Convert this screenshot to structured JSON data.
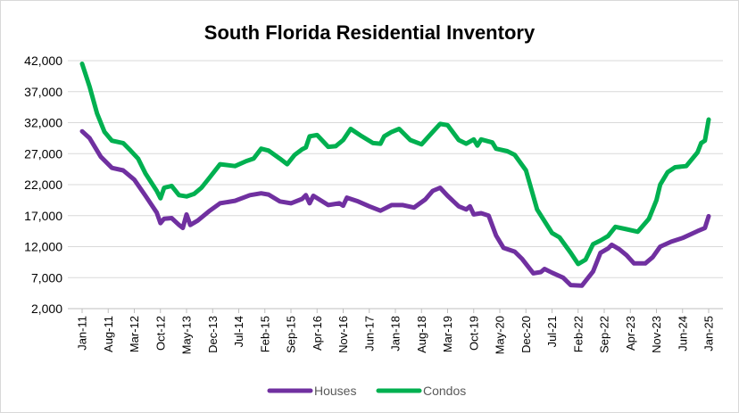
{
  "chart_data": {
    "type": "line",
    "title": "South Florida Residential Inventory",
    "xlabel": "",
    "ylabel": "",
    "ylim": [
      2000,
      42000
    ],
    "y_ticks": [
      "2,000",
      "7,000",
      "12,000",
      "17,000",
      "22,000",
      "27,000",
      "32,000",
      "37,000",
      "42,000"
    ],
    "x_tick_labels": [
      "Jan-11",
      "Aug-11",
      "Mar-12",
      "Oct-12",
      "May-13",
      "Dec-13",
      "Jul-14",
      "Feb-15",
      "Sep-15",
      "Apr-16",
      "Nov-16",
      "Jun-17",
      "Jan-18",
      "Aug-18",
      "Mar-19",
      "Oct-19",
      "May-20",
      "Dec-20",
      "Jul-21",
      "Feb-22",
      "Sep-22",
      "Apr-23",
      "Nov-23",
      "Jun-24",
      "Jan-25"
    ],
    "x_range": [
      "Jan-11",
      "Jan-25"
    ],
    "grid": "horizontal",
    "legend": "bottom",
    "series": [
      {
        "name": "Houses",
        "color": "#7030a0",
        "points": [
          [
            "Jan-11",
            30600
          ],
          [
            "Mar-11",
            29500
          ],
          [
            "Jun-11",
            26500
          ],
          [
            "Sep-11",
            24700
          ],
          [
            "Dec-11",
            24300
          ],
          [
            "Mar-12",
            22800
          ],
          [
            "Jun-12",
            20200
          ],
          [
            "Sep-12",
            17500
          ],
          [
            "Oct-12",
            15800
          ],
          [
            "Nov-12",
            16500
          ],
          [
            "Jan-13",
            16600
          ],
          [
            "Mar-13",
            15500
          ],
          [
            "Apr-13",
            15000
          ],
          [
            "May-13",
            17200
          ],
          [
            "Jun-13",
            15500
          ],
          [
            "Aug-13",
            16200
          ],
          [
            "Nov-13",
            17700
          ],
          [
            "Feb-14",
            19000
          ],
          [
            "Jun-14",
            19400
          ],
          [
            "Oct-14",
            20300
          ],
          [
            "Jan-15",
            20600
          ],
          [
            "Mar-15",
            20400
          ],
          [
            "Jun-15",
            19300
          ],
          [
            "Sep-15",
            19000
          ],
          [
            "Dec-15",
            19700
          ],
          [
            "Jan-16",
            20300
          ],
          [
            "Feb-16",
            19000
          ],
          [
            "Mar-16",
            20200
          ],
          [
            "Jul-16",
            18700
          ],
          [
            "Oct-16",
            19000
          ],
          [
            "Nov-16",
            18600
          ],
          [
            "Dec-16",
            19900
          ],
          [
            "Mar-17",
            19300
          ],
          [
            "Jun-17",
            18500
          ],
          [
            "Sep-17",
            17800
          ],
          [
            "Dec-17",
            18700
          ],
          [
            "Mar-18",
            18700
          ],
          [
            "Jun-18",
            18300
          ],
          [
            "Sep-18",
            19600
          ],
          [
            "Nov-18",
            21000
          ],
          [
            "Jan-19",
            21500
          ],
          [
            "Mar-19",
            20200
          ],
          [
            "Jun-19",
            18500
          ],
          [
            "Aug-19",
            18000
          ],
          [
            "Sep-19",
            18500
          ],
          [
            "Oct-19",
            17200
          ],
          [
            "Dec-19",
            17400
          ],
          [
            "Feb-20",
            17000
          ],
          [
            "Apr-20",
            13800
          ],
          [
            "Jun-20",
            11800
          ],
          [
            "Sep-20",
            11200
          ],
          [
            "Nov-20",
            10000
          ],
          [
            "Feb-21",
            7700
          ],
          [
            "Apr-21",
            7900
          ],
          [
            "May-21",
            8400
          ],
          [
            "Jul-21",
            7800
          ],
          [
            "Oct-21",
            7000
          ],
          [
            "Dec-21",
            5800
          ],
          [
            "Mar-22",
            5700
          ],
          [
            "Jun-22",
            8000
          ],
          [
            "Aug-22",
            11000
          ],
          [
            "Oct-22",
            11700
          ],
          [
            "Nov-22",
            12300
          ],
          [
            "Jan-23",
            11600
          ],
          [
            "Mar-23",
            10600
          ],
          [
            "May-23",
            9300
          ],
          [
            "Aug-23",
            9300
          ],
          [
            "Oct-23",
            10300
          ],
          [
            "Dec-23",
            12000
          ],
          [
            "Mar-24",
            12800
          ],
          [
            "Jun-24",
            13400
          ],
          [
            "Oct-24",
            14500
          ],
          [
            "Dec-24",
            15000
          ],
          [
            "Jan-25",
            16900
          ]
        ]
      },
      {
        "name": "Condos",
        "color": "#00b050",
        "points": [
          [
            "Jan-11",
            41500
          ],
          [
            "Mar-11",
            37800
          ],
          [
            "May-11",
            33500
          ],
          [
            "Jul-11",
            30500
          ],
          [
            "Sep-11",
            29100
          ],
          [
            "Dec-11",
            28700
          ],
          [
            "Feb-12",
            27500
          ],
          [
            "Apr-12",
            26200
          ],
          [
            "Jun-12",
            23800
          ],
          [
            "Sep-12",
            21000
          ],
          [
            "Oct-12",
            19800
          ],
          [
            "Nov-12",
            21500
          ],
          [
            "Jan-13",
            21800
          ],
          [
            "Mar-13",
            20300
          ],
          [
            "May-13",
            20100
          ],
          [
            "Jul-13",
            20500
          ],
          [
            "Sep-13",
            21500
          ],
          [
            "Nov-13",
            23000
          ],
          [
            "Feb-14",
            25300
          ],
          [
            "Jun-14",
            25000
          ],
          [
            "Sep-14",
            25800
          ],
          [
            "Nov-14",
            26200
          ],
          [
            "Jan-15",
            27800
          ],
          [
            "Mar-15",
            27500
          ],
          [
            "Jun-15",
            26200
          ],
          [
            "Aug-15",
            25300
          ],
          [
            "Oct-15",
            26800
          ],
          [
            "Dec-15",
            27700
          ],
          [
            "Jan-16",
            28000
          ],
          [
            "Feb-16",
            29800
          ],
          [
            "Apr-16",
            30000
          ],
          [
            "Jul-16",
            28100
          ],
          [
            "Sep-16",
            28200
          ],
          [
            "Nov-16",
            29200
          ],
          [
            "Jan-17",
            31000
          ],
          [
            "Apr-17",
            29800
          ],
          [
            "Jul-17",
            28700
          ],
          [
            "Sep-17",
            28600
          ],
          [
            "Oct-17",
            29800
          ],
          [
            "Dec-17",
            30500
          ],
          [
            "Feb-18",
            31000
          ],
          [
            "May-18",
            29200
          ],
          [
            "Aug-18",
            28500
          ],
          [
            "Nov-18",
            30500
          ],
          [
            "Jan-19",
            31800
          ],
          [
            "Mar-19",
            31600
          ],
          [
            "Jun-19",
            29200
          ],
          [
            "Aug-19",
            28600
          ],
          [
            "Oct-19",
            29300
          ],
          [
            "Nov-19",
            28300
          ],
          [
            "Dec-19",
            29300
          ],
          [
            "Mar-20",
            28800
          ],
          [
            "Apr-20",
            27800
          ],
          [
            "Jul-20",
            27400
          ],
          [
            "Sep-20",
            26800
          ],
          [
            "Dec-20",
            24300
          ],
          [
            "Mar-21",
            18000
          ],
          [
            "Jul-21",
            14200
          ],
          [
            "Sep-21",
            13500
          ],
          [
            "Dec-21",
            11000
          ],
          [
            "Feb-22",
            9200
          ],
          [
            "Apr-22",
            9900
          ],
          [
            "Jun-22",
            12400
          ],
          [
            "Aug-22",
            13000
          ],
          [
            "Oct-22",
            13700
          ],
          [
            "Dec-22",
            15200
          ],
          [
            "Mar-23",
            14800
          ],
          [
            "Jun-23",
            14400
          ],
          [
            "Sep-23",
            16500
          ],
          [
            "Nov-23",
            19500
          ],
          [
            "Dec-23",
            22000
          ],
          [
            "Feb-24",
            24000
          ],
          [
            "Apr-24",
            24800
          ],
          [
            "Jul-24",
            25000
          ],
          [
            "Oct-24",
            27200
          ],
          [
            "Nov-24",
            28700
          ],
          [
            "Dec-24",
            29100
          ],
          [
            "Jan-25",
            32500
          ]
        ]
      }
    ]
  }
}
